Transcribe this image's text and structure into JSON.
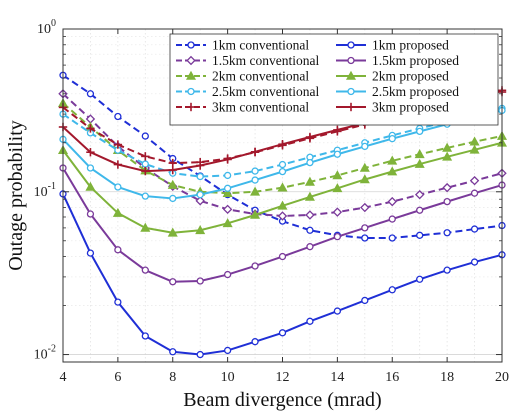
{
  "chart_data": {
    "type": "line",
    "xlabel": "Beam divergence (mrad)",
    "ylabel": "Outage probability",
    "xlim": [
      4,
      20
    ],
    "ylim": [
      0.009,
      1
    ],
    "yscale": "log",
    "grid": true,
    "legend_position": "top-right",
    "x_ticks": [
      "4",
      "6",
      "8",
      "10",
      "12",
      "14",
      "16",
      "18",
      "20"
    ],
    "y_ticks": [
      {
        "value": 0.01,
        "base": "10",
        "exp": "-2"
      },
      {
        "value": 0.1,
        "base": "10",
        "exp": "-1"
      },
      {
        "value": 1,
        "base": "10",
        "exp": "0"
      }
    ],
    "x": [
      4,
      5,
      6,
      7,
      8,
      9,
      10,
      11,
      12,
      13,
      14,
      15,
      16,
      17,
      18,
      19,
      20
    ],
    "series": [
      {
        "name": "1km conventional",
        "color": "#1f2fd6",
        "dash": true,
        "marker": "circle",
        "values": [
          0.52,
          0.4,
          0.29,
          0.22,
          0.16,
          0.125,
          0.096,
          0.077,
          0.066,
          0.058,
          0.054,
          0.052,
          0.052,
          0.054,
          0.056,
          0.059,
          0.062
        ]
      },
      {
        "name": "1km proposed",
        "color": "#1f2fd6",
        "dash": false,
        "marker": "circle",
        "values": [
          0.097,
          0.042,
          0.021,
          0.013,
          0.0104,
          0.01,
          0.0106,
          0.012,
          0.0136,
          0.016,
          0.0185,
          0.0215,
          0.025,
          0.029,
          0.033,
          0.037,
          0.041
        ]
      },
      {
        "name": "1.5km conventional",
        "color": "#7a3a9a",
        "dash": true,
        "marker": "diamond",
        "values": [
          0.4,
          0.28,
          0.19,
          0.14,
          0.108,
          0.088,
          0.078,
          0.073,
          0.071,
          0.072,
          0.075,
          0.08,
          0.087,
          0.096,
          0.106,
          0.117,
          0.13
        ]
      },
      {
        "name": "1.5km proposed",
        "color": "#7a3a9a",
        "dash": false,
        "marker": "circle",
        "values": [
          0.14,
          0.073,
          0.044,
          0.033,
          0.028,
          0.0283,
          0.031,
          0.035,
          0.04,
          0.046,
          0.053,
          0.06,
          0.068,
          0.077,
          0.087,
          0.098,
          0.11
        ]
      },
      {
        "name": "2km conventional",
        "color": "#7fb33a",
        "dash": true,
        "marker": "triangle",
        "values": [
          0.35,
          0.25,
          0.18,
          0.135,
          0.11,
          0.1,
          0.098,
          0.1,
          0.106,
          0.115,
          0.126,
          0.14,
          0.155,
          0.17,
          0.186,
          0.203,
          0.22
        ]
      },
      {
        "name": "2km proposed",
        "color": "#7fb33a",
        "dash": false,
        "marker": "triangle",
        "values": [
          0.18,
          0.107,
          0.074,
          0.06,
          0.056,
          0.058,
          0.064,
          0.072,
          0.082,
          0.093,
          0.105,
          0.119,
          0.133,
          0.148,
          0.164,
          0.181,
          0.2
        ]
      },
      {
        "name": "2.5km conventional",
        "color": "#3fb8ea",
        "dash": true,
        "marker": "circle",
        "values": [
          0.3,
          0.23,
          0.18,
          0.148,
          0.13,
          0.124,
          0.126,
          0.134,
          0.147,
          0.163,
          0.18,
          0.2,
          0.222,
          0.245,
          0.27,
          0.297,
          0.325
        ]
      },
      {
        "name": "2.5km proposed",
        "color": "#3fb8ea",
        "dash": false,
        "marker": "circle",
        "values": [
          0.21,
          0.14,
          0.107,
          0.094,
          0.091,
          0.096,
          0.105,
          0.118,
          0.133,
          0.151,
          0.17,
          0.19,
          0.212,
          0.235,
          0.26,
          0.287,
          0.316
        ]
      },
      {
        "name": "3km conventional",
        "color": "#a3182c",
        "dash": true,
        "marker": "plus",
        "values": [
          0.33,
          0.245,
          0.195,
          0.165,
          0.15,
          0.152,
          0.16,
          0.175,
          0.193,
          0.213,
          0.235,
          0.259,
          0.285,
          0.312,
          0.342,
          0.374,
          0.41
        ]
      },
      {
        "name": "3km proposed",
        "color": "#a3182c",
        "dash": false,
        "marker": "plus",
        "values": [
          0.25,
          0.175,
          0.147,
          0.134,
          0.136,
          0.145,
          0.158,
          0.176,
          0.196,
          0.217,
          0.24,
          0.264,
          0.29,
          0.318,
          0.348,
          0.38,
          0.42
        ]
      }
    ]
  }
}
